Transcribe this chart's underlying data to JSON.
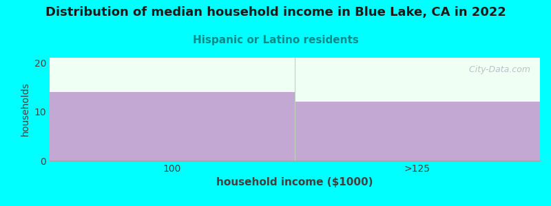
{
  "title": "Distribution of median household income in Blue Lake, CA in 2022",
  "subtitle": "Hispanic or Latino residents",
  "xlabel": "household income ($1000)",
  "ylabel": "households",
  "categories": [
    "100",
    ">125"
  ],
  "values": [
    14,
    12
  ],
  "bar_color": "#C4A8D4",
  "background_color": "#00FFFF",
  "plot_bg_color": "#F0FFF4",
  "title_fontsize": 13,
  "subtitle_fontsize": 11,
  "subtitle_color": "#008B8B",
  "xlabel_fontsize": 11,
  "ylabel_fontsize": 10,
  "tick_fontsize": 10,
  "ylim": [
    0,
    21
  ],
  "yticks": [
    0,
    10,
    20
  ],
  "watermark": "  City-Data.com",
  "watermark_color": "#B0B8C0",
  "separator_color": "#C0D0C0"
}
